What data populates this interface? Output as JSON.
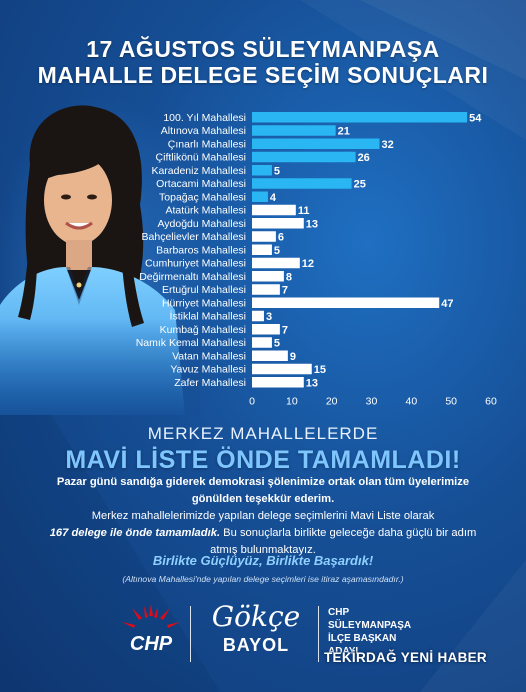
{
  "title_line1": "17 AĞUSTOS SÜLEYMANPAŞA",
  "title_line2": "MAHALLE DELEGE SEÇİM SONUÇLARI",
  "chart_data": {
    "type": "bar",
    "orientation": "horizontal",
    "categories": [
      "100. Yıl Mahallesi",
      "Altınova Mahallesi",
      "Çınarlı Mahallesi",
      "Çiftlikönü Mahallesi",
      "Karadeniz Mahallesi",
      "Ortacami Mahallesi",
      "Topağaç Mahallesi",
      "Atatürk Mahallesi",
      "Aydoğdu Mahallesi",
      "Bahçelievler Mahallesi",
      "Barbaros Mahallesi",
      "Cumhuriyet Mahallesi",
      "Değirmenaltı Mahallesi",
      "Ertuğrul Mahallesi",
      "Hürriyet Mahallesi",
      "İstiklal Mahallesi",
      "Kumbağ Mahallesi",
      "Namık Kemal Mahallesi",
      "Vatan Mahallesi",
      "Yavuz Mahallesi",
      "Zafer Mahallesi"
    ],
    "values": [
      54,
      21,
      32,
      26,
      5,
      25,
      4,
      11,
      13,
      6,
      5,
      12,
      8,
      7,
      47,
      3,
      7,
      5,
      9,
      15,
      13
    ],
    "bar_colors": [
      "#29b6f2",
      "#29b6f2",
      "#29b6f2",
      "#29b6f2",
      "#29b6f2",
      "#29b6f2",
      "#29b6f2",
      "#ffffff",
      "#ffffff",
      "#ffffff",
      "#ffffff",
      "#ffffff",
      "#ffffff",
      "#ffffff",
      "#ffffff",
      "#ffffff",
      "#ffffff",
      "#ffffff",
      "#ffffff",
      "#ffffff",
      "#ffffff"
    ],
    "xticks": [
      0,
      10,
      20,
      30,
      40,
      50,
      60
    ],
    "xlim": [
      0,
      60
    ],
    "data_labels": true,
    "grid": false
  },
  "subtitle": "MERKEZ MAHALLELERDE",
  "headline": "MAVİ LİSTE ÖNDE TAMAMLADI!",
  "paragraph1": "Pazar günü sandığa giderek demokrasi şölenimize ortak olan tüm üyelerimize gönülden teşekkür ederim.",
  "paragraph2_start": "Merkez mahallelerimizde yapılan delege seçimlerini Mavi Liste olarak",
  "paragraph2_bold": "167 delege ile önde tamamladık.",
  "paragraph2_end": "Bu sonuçlarla birlikte geleceğe daha güçlü bir adım atmış bulunmaktayız.",
  "slogan": "Birlikte Güçlüyüz, Birlikte Başardık!",
  "note": "(Altınova Mahallesi'nde yapılan delege seçimleri ise itiraz aşamasındadır.)",
  "footer": {
    "logo_text": "CHP",
    "signature_script": "Gökçe",
    "signature_name": "BAYOL",
    "role_line1": "CHP",
    "role_line2": "SÜLEYMANPAŞA",
    "role_line3": "İLÇE BAŞKAN",
    "role_line4": "ADAYI"
  },
  "watermark": "TEKİRDAĞ YENİ HABER",
  "colors": {
    "background": "#164f96",
    "accent_bar": "#29b6f2",
    "headline": "#7fc6ff",
    "chp_red": "#e30a17"
  }
}
